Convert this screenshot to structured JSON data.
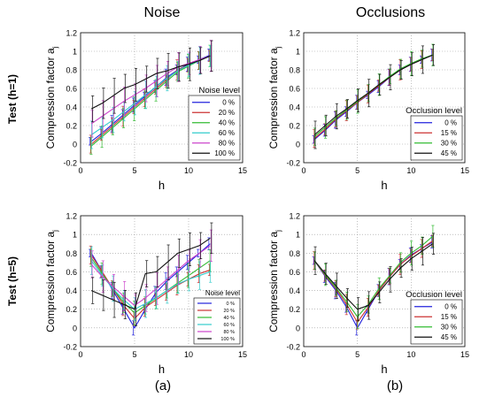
{
  "figure": {
    "col_titles": [
      "Noise",
      "Occlusions"
    ],
    "row_titles": [
      "Test (h=1)",
      "Test (h=5)"
    ],
    "panel_letters": [
      "(a)",
      "(b)"
    ]
  },
  "chart_data": [
    {
      "type": "line",
      "id": "top-left",
      "xlabel": "h",
      "ylabel": "Compression factor a",
      "ylabel_sub": "j",
      "xlim": [
        0,
        15
      ],
      "ylim": [
        -0.2,
        1.2
      ],
      "xticks": [
        "0",
        "5",
        "10",
        "15"
      ],
      "yticks": [
        "-0.2",
        "0",
        "0.2",
        "0.4",
        "0.6",
        "0.8",
        "1",
        "1.2"
      ],
      "grid": true,
      "legend": {
        "title": "Noise level",
        "placement": "bottom-right",
        "small": false
      },
      "x": [
        1,
        2,
        3,
        4,
        5,
        6,
        7,
        8,
        9,
        10,
        11,
        12
      ],
      "series": [
        {
          "name": "0 %",
          "color": "#2222dd",
          "values": [
            0.03,
            0.12,
            0.22,
            0.32,
            0.42,
            0.52,
            0.62,
            0.72,
            0.8,
            0.86,
            0.91,
            0.96
          ]
        },
        {
          "name": "20 %",
          "color": "#cc3333",
          "values": [
            0.0,
            0.1,
            0.2,
            0.3,
            0.4,
            0.5,
            0.6,
            0.7,
            0.8,
            0.85,
            0.9,
            0.95
          ]
        },
        {
          "name": "40 %",
          "color": "#33bb33",
          "values": [
            -0.02,
            0.08,
            0.18,
            0.28,
            0.38,
            0.48,
            0.58,
            0.68,
            0.78,
            0.84,
            0.9,
            0.95
          ]
        },
        {
          "name": "60 %",
          "color": "#33cccc",
          "values": [
            0.1,
            0.18,
            0.26,
            0.35,
            0.44,
            0.53,
            0.62,
            0.71,
            0.79,
            0.85,
            0.9,
            0.95
          ]
        },
        {
          "name": "80 %",
          "color": "#cc44cc",
          "values": [
            0.22,
            0.3,
            0.38,
            0.46,
            0.53,
            0.6,
            0.68,
            0.76,
            0.83,
            0.87,
            0.91,
            0.95
          ]
        },
        {
          "name": "100 %",
          "color": "#111111",
          "values": [
            0.38,
            0.44,
            0.52,
            0.6,
            0.64,
            0.7,
            0.76,
            0.79,
            0.83,
            0.86,
            0.9,
            0.95
          ]
        }
      ]
    },
    {
      "type": "line",
      "id": "top-right",
      "xlabel": "h",
      "ylabel": "Compression factor a",
      "ylabel_sub": "j",
      "xlim": [
        0,
        15
      ],
      "ylim": [
        -0.2,
        1.2
      ],
      "xticks": [
        "0",
        "5",
        "10",
        "15"
      ],
      "yticks": [
        "-0.2",
        "0",
        "0.2",
        "0.4",
        "0.6",
        "0.8",
        "1",
        "1.2"
      ],
      "grid": true,
      "legend": {
        "title": "Occlusion level",
        "placement": "bottom-right",
        "small": false
      },
      "x": [
        1,
        2,
        3,
        4,
        5,
        6,
        7,
        8,
        9,
        10,
        11,
        12
      ],
      "series": [
        {
          "name": "0 %",
          "color": "#2222dd",
          "values": [
            0.05,
            0.15,
            0.26,
            0.35,
            0.45,
            0.53,
            0.62,
            0.72,
            0.8,
            0.86,
            0.91,
            0.96
          ]
        },
        {
          "name": "15 %",
          "color": "#cc3333",
          "values": [
            0.06,
            0.16,
            0.27,
            0.36,
            0.45,
            0.54,
            0.63,
            0.72,
            0.8,
            0.86,
            0.91,
            0.96
          ]
        },
        {
          "name": "30 %",
          "color": "#33bb33",
          "values": [
            0.08,
            0.18,
            0.28,
            0.37,
            0.46,
            0.55,
            0.64,
            0.73,
            0.81,
            0.87,
            0.92,
            0.96
          ]
        },
        {
          "name": "45 %",
          "color": "#111111",
          "values": [
            0.1,
            0.2,
            0.3,
            0.38,
            0.47,
            0.55,
            0.64,
            0.72,
            0.8,
            0.86,
            0.91,
            0.96
          ]
        }
      ]
    },
    {
      "type": "line",
      "id": "bottom-left",
      "xlabel": "h",
      "ylabel": "Compression factor a",
      "ylabel_sub": "j",
      "xlim": [
        0,
        15
      ],
      "ylim": [
        -0.2,
        1.2
      ],
      "xticks": [
        "0",
        "5",
        "10",
        "15"
      ],
      "yticks": [
        "-0.2",
        "0",
        "0.2",
        "0.4",
        "0.6",
        "0.8",
        "1",
        "1.2"
      ],
      "grid": true,
      "legend": {
        "title": "Noise level",
        "placement": "bottom-right",
        "small": true
      },
      "x": [
        1,
        2,
        3,
        4,
        5,
        6,
        7,
        8,
        9,
        10,
        11,
        12
      ],
      "series": [
        {
          "name": "0 %",
          "color": "#2222dd",
          "values": [
            0.8,
            0.6,
            0.4,
            0.2,
            0.0,
            0.2,
            0.38,
            0.5,
            0.6,
            0.7,
            0.8,
            0.9
          ]
        },
        {
          "name": "20 %",
          "color": "#cc3333",
          "values": [
            0.78,
            0.6,
            0.42,
            0.24,
            0.1,
            0.22,
            0.3,
            0.38,
            0.46,
            0.52,
            0.58,
            0.62
          ]
        },
        {
          "name": "40 %",
          "color": "#33bb33",
          "values": [
            0.75,
            0.58,
            0.42,
            0.27,
            0.16,
            0.24,
            0.32,
            0.4,
            0.48,
            0.56,
            0.64,
            0.72
          ]
        },
        {
          "name": "60 %",
          "color": "#33cccc",
          "values": [
            0.72,
            0.56,
            0.42,
            0.3,
            0.2,
            0.26,
            0.32,
            0.4,
            0.47,
            0.52,
            0.56,
            0.6
          ]
        },
        {
          "name": "80 %",
          "color": "#cc44cc",
          "values": [
            0.68,
            0.55,
            0.44,
            0.34,
            0.24,
            0.32,
            0.42,
            0.52,
            0.62,
            0.72,
            0.8,
            0.88
          ]
        },
        {
          "name": "100 %",
          "color": "#111111",
          "values": [
            0.4,
            0.35,
            0.3,
            0.25,
            0.2,
            0.58,
            0.6,
            0.7,
            0.8,
            0.84,
            0.88,
            0.96
          ]
        }
      ]
    },
    {
      "type": "line",
      "id": "bottom-right",
      "xlabel": "h",
      "ylabel": "Compression factor a",
      "ylabel_sub": "j",
      "xlim": [
        0,
        15
      ],
      "ylim": [
        -0.2,
        1.2
      ],
      "xticks": [
        "0",
        "5",
        "10",
        "15"
      ],
      "yticks": [
        "-0.2",
        "0",
        "0.2",
        "0.4",
        "0.6",
        "0.8",
        "1",
        "1.2"
      ],
      "grid": true,
      "legend": {
        "title": "Occlusion level",
        "placement": "bottom-right",
        "small": false
      },
      "x": [
        1,
        2,
        3,
        4,
        5,
        6,
        7,
        8,
        9,
        10,
        11,
        12
      ],
      "series": [
        {
          "name": "0 %",
          "color": "#2222dd",
          "values": [
            0.72,
            0.55,
            0.4,
            0.22,
            0.0,
            0.2,
            0.4,
            0.55,
            0.68,
            0.78,
            0.85,
            0.92
          ]
        },
        {
          "name": "15 %",
          "color": "#cc3333",
          "values": [
            0.72,
            0.56,
            0.42,
            0.25,
            0.06,
            0.22,
            0.4,
            0.55,
            0.68,
            0.77,
            0.85,
            0.93
          ]
        },
        {
          "name": "30 %",
          "color": "#33bb33",
          "values": [
            0.72,
            0.57,
            0.43,
            0.28,
            0.12,
            0.25,
            0.42,
            0.56,
            0.7,
            0.8,
            0.88,
            0.98
          ]
        },
        {
          "name": "45 %",
          "color": "#111111",
          "values": [
            0.72,
            0.58,
            0.45,
            0.32,
            0.2,
            0.24,
            0.38,
            0.52,
            0.64,
            0.74,
            0.82,
            0.9
          ]
        }
      ]
    }
  ]
}
